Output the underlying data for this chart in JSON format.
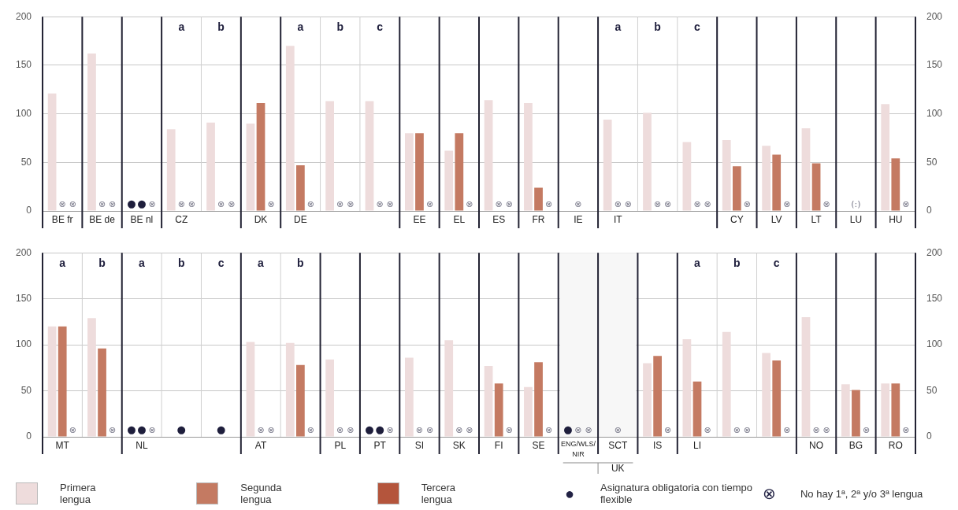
{
  "chart_data": [
    {
      "type": "bar",
      "categories": [
        "BE fr",
        "BE de",
        "BE nl",
        "CZ",
        null,
        "DK",
        "DE",
        null,
        null,
        "EE",
        "EL",
        "ES",
        "FR",
        "IE",
        "IT",
        null,
        null,
        "CY",
        "LV",
        "LT",
        "LU",
        "HU"
      ],
      "series": [
        {
          "name": "Primera lengua",
          "color": "#eedcdc",
          "values": [
            121,
            162,
            null,
            84,
            91,
            90,
            170,
            113,
            113,
            80,
            62,
            114,
            111,
            null,
            94,
            101,
            71,
            73,
            67,
            85,
            null,
            110
          ],
          "value_labels": [
            null,
            null,
            "●",
            null,
            null,
            null,
            null,
            null,
            null,
            null,
            null,
            null,
            null,
            null,
            null,
            null,
            null,
            null,
            null,
            null,
            null,
            null
          ]
        },
        {
          "name": "Segunda lengua",
          "color": "#c47a62",
          "values": [
            null,
            null,
            null,
            null,
            null,
            111,
            47,
            null,
            null,
            80,
            80,
            null,
            24,
            null,
            null,
            null,
            null,
            46,
            58,
            49,
            null,
            54
          ],
          "value_labels": [
            "⊗",
            "⊗",
            "●",
            "⊗",
            "⊗",
            null,
            null,
            "⊗",
            "⊗",
            null,
            null,
            "⊗",
            null,
            "⊗",
            "⊗",
            "⊗",
            "⊗",
            null,
            null,
            null,
            "(:)",
            null
          ]
        },
        {
          "name": "Tercera lengua",
          "color": "#b4553c",
          "values": [
            null,
            null,
            null,
            null,
            null,
            null,
            null,
            null,
            null,
            null,
            null,
            null,
            null,
            null,
            null,
            null,
            null,
            null,
            null,
            null,
            null,
            null
          ],
          "value_labels": [
            "⊗",
            "⊗",
            "⊗",
            "⊗",
            "⊗",
            "⊗",
            "⊗",
            "⊗",
            "⊗",
            "⊗",
            "⊗",
            "⊗",
            "⊗",
            null,
            "⊗",
            "⊗",
            "⊗",
            "⊗",
            "⊗",
            "⊗",
            null,
            "⊗"
          ]
        }
      ],
      "ylim": [
        0,
        200
      ],
      "yticks": [
        0,
        50,
        100,
        150,
        200
      ],
      "y2lim": [
        0,
        200
      ],
      "y2ticks": [
        0,
        50,
        100,
        150,
        200
      ],
      "grid": "y",
      "legend": "bottom",
      "annotations": [
        "a",
        "b",
        "a",
        "b",
        "c",
        "a",
        "b",
        "c"
      ]
    },
    {
      "type": "bar",
      "categories": [
        "MT",
        null,
        "NL",
        null,
        null,
        "AT",
        null,
        "PL",
        "PT",
        "SI",
        "SK",
        "FI",
        "SE",
        "ENG/WLS/NIR",
        "SCT",
        "IS",
        "LI",
        null,
        null,
        "NO",
        "BG",
        "RO"
      ],
      "series": [
        {
          "name": "Primera lengua",
          "color": "#eedcdc",
          "values": [
            120,
            129,
            null,
            null,
            null,
            103,
            102,
            84,
            null,
            86,
            105,
            77,
            54,
            null,
            null,
            80,
            106,
            114,
            91,
            130,
            57,
            58
          ],
          "value_labels": [
            null,
            null,
            "●",
            null,
            null,
            null,
            null,
            null,
            "●",
            null,
            null,
            null,
            null,
            "●",
            null,
            null,
            null,
            null,
            null,
            null,
            null,
            null
          ]
        },
        {
          "name": "Segunda lengua",
          "color": "#c47a62",
          "values": [
            120,
            96,
            null,
            null,
            null,
            null,
            78,
            null,
            null,
            null,
            null,
            58,
            81,
            null,
            null,
            88,
            60,
            null,
            83,
            null,
            51,
            58
          ],
          "value_labels": [
            null,
            null,
            "●",
            "●",
            "●",
            "⊗",
            null,
            "⊗",
            "●",
            "⊗",
            "⊗",
            null,
            null,
            "⊗",
            "⊗",
            null,
            null,
            "⊗",
            null,
            "⊗",
            null,
            null
          ]
        },
        {
          "color": "#b4553c",
          "values": [
            null,
            null,
            null,
            null,
            null,
            null,
            null,
            null,
            null,
            null,
            null,
            null,
            null,
            null,
            null,
            null,
            null,
            null,
            null,
            null,
            null,
            null
          ],
          "value_labels": [
            "⊗",
            "⊗",
            "⊗",
            null,
            null,
            "⊗",
            "⊗",
            "⊗",
            "⊗",
            "⊗",
            "⊗",
            "⊗",
            "⊗",
            "⊗",
            null,
            "⊗",
            "⊗",
            "⊗",
            "⊗",
            "⊗",
            "⊗",
            "⊗"
          ]
        }
      ],
      "ylim": [
        0,
        200
      ],
      "yticks": [
        0,
        50,
        100,
        150,
        200
      ],
      "y2lim": [
        0,
        200
      ],
      "y2ticks": [
        0,
        50,
        100,
        150,
        200
      ],
      "grid": "y",
      "legend": "bottom",
      "bands": [
        {
          "axis": "x",
          "from": "ENG/WLS/NIR",
          "to": "SCT",
          "label": "UK",
          "color": "#f7f7f7"
        }
      ],
      "annotations": [
        "a",
        "b",
        "a",
        "b",
        "c",
        "a",
        "b",
        "a",
        "b",
        "c",
        "● Asignatura obligatoria con tiempo flexible",
        "⊗ No hay 1ª, 2ª y/o 3ª lengua"
      ]
    }
  ]
}
